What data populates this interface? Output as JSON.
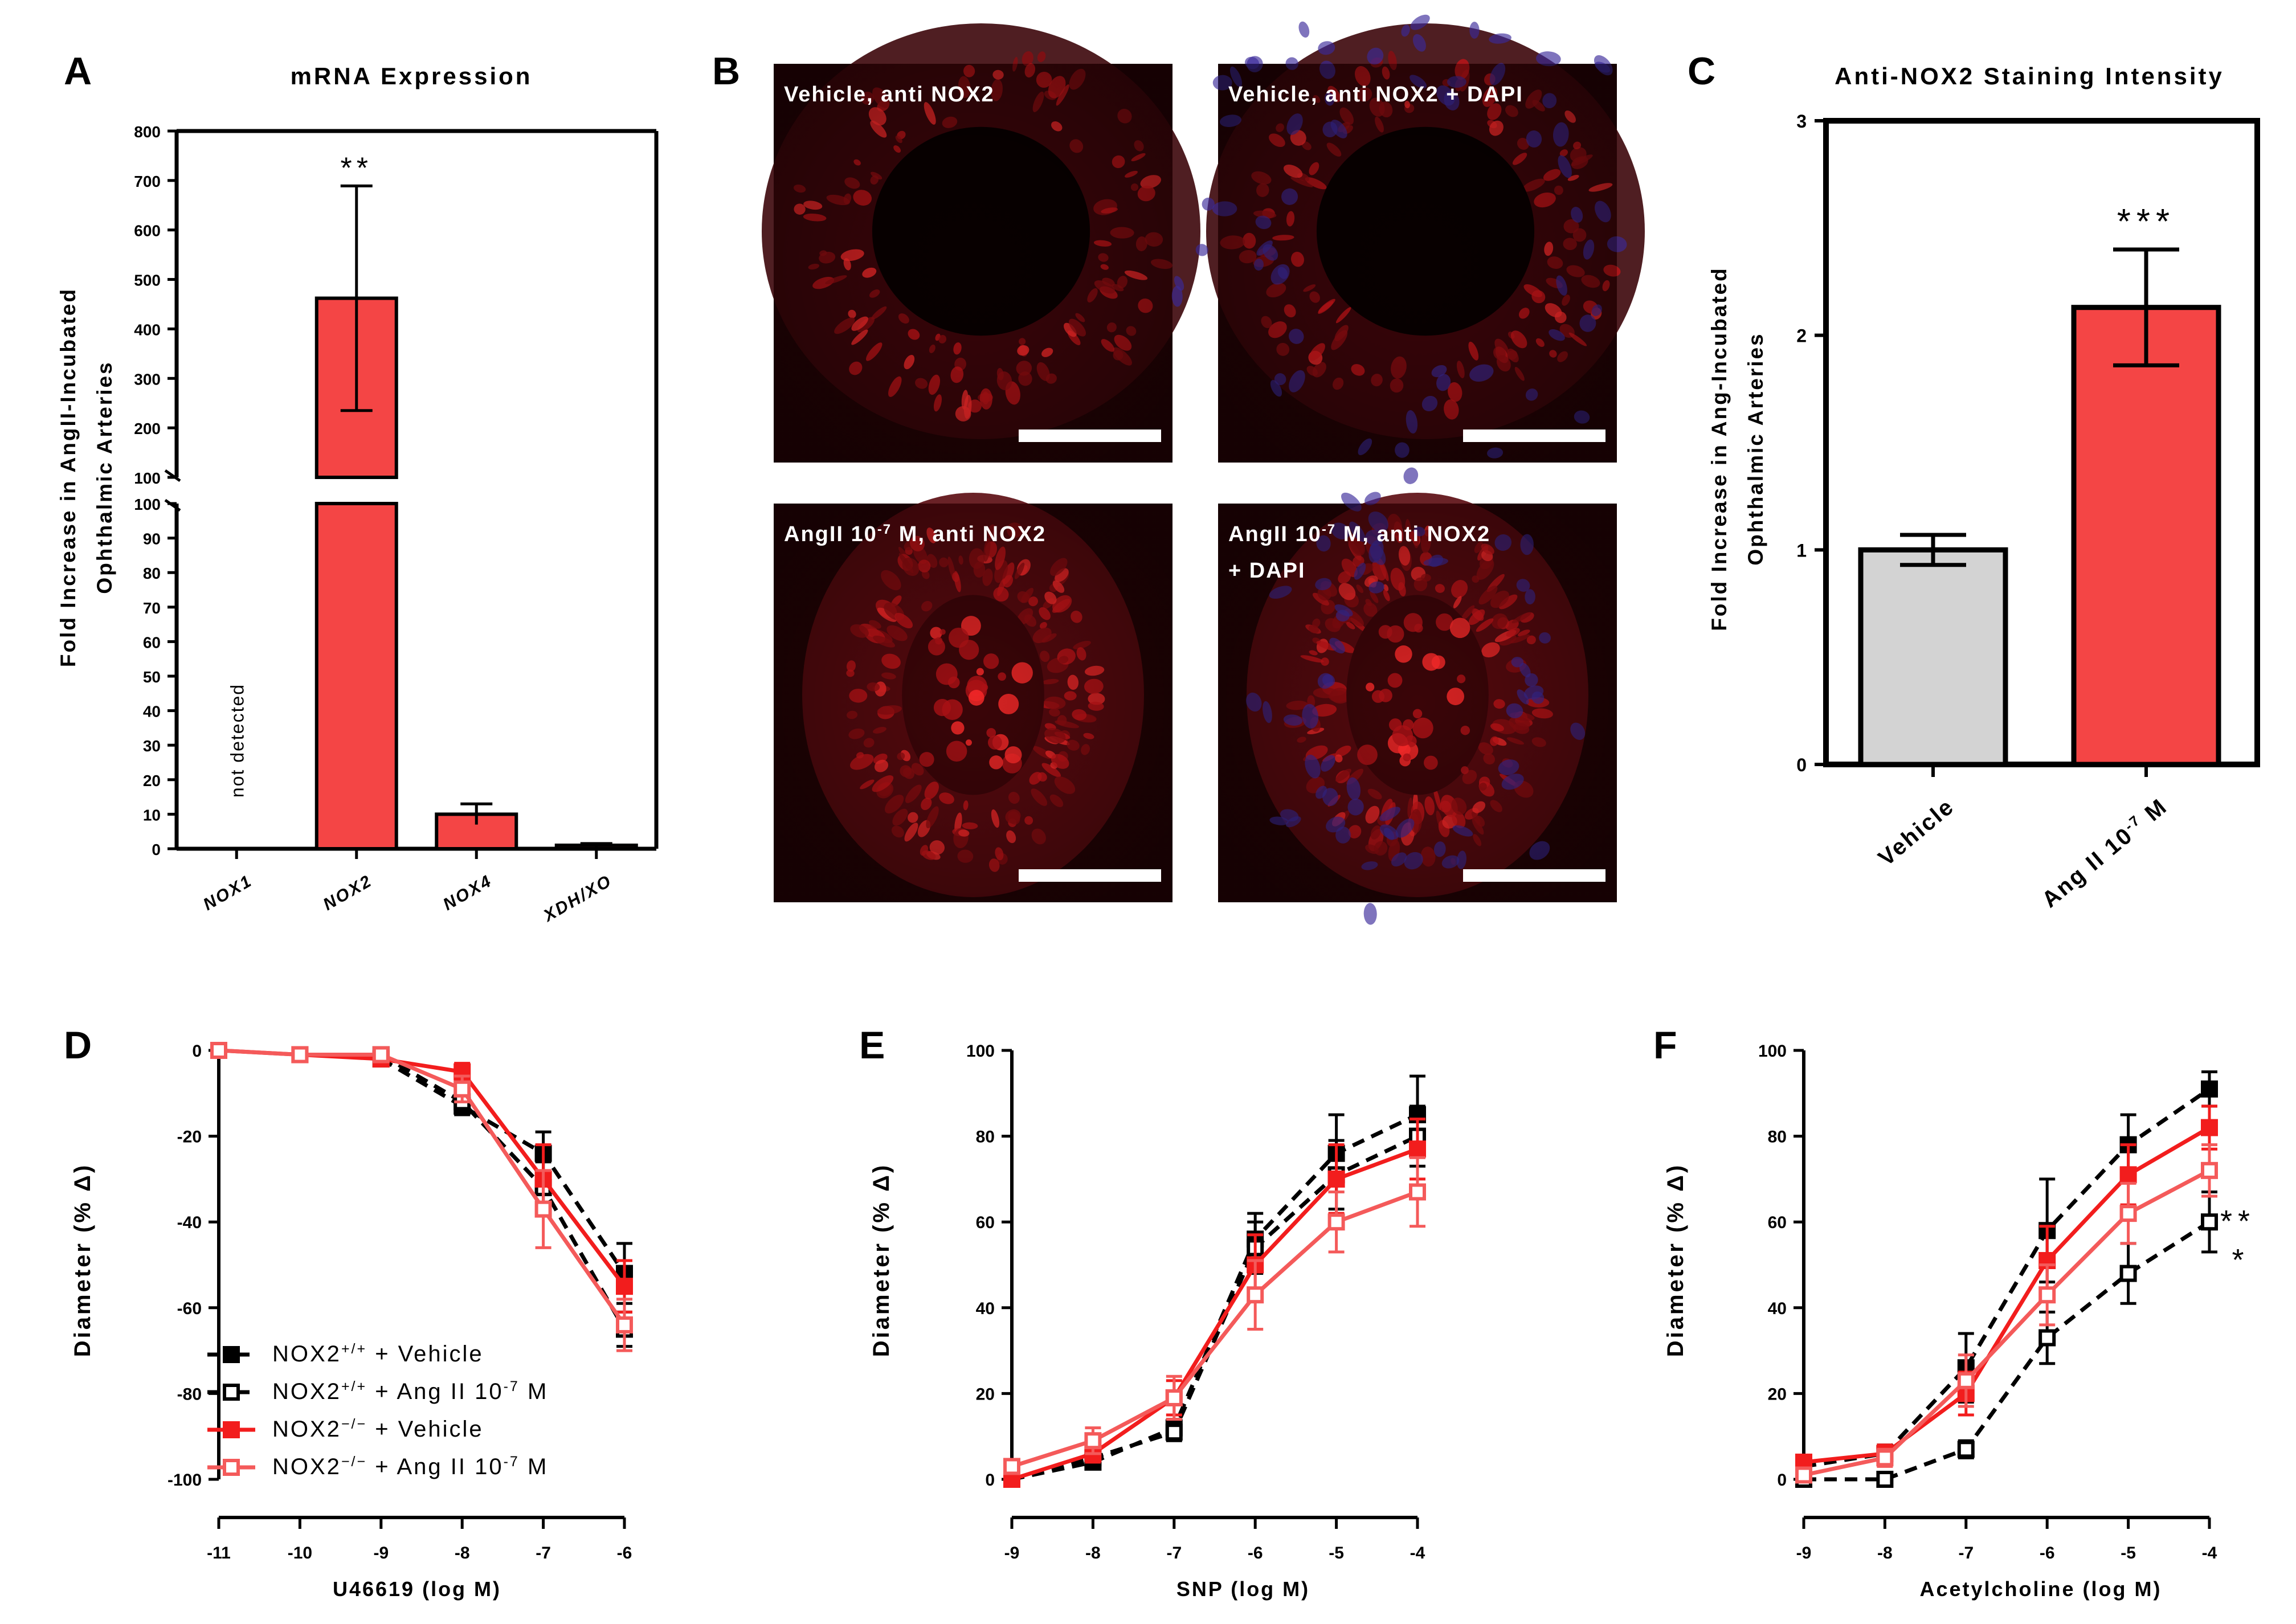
{
  "panels": {
    "A": {
      "letter": "A",
      "chart_data": {
        "type": "bar",
        "title": "mRNA Expression",
        "ylabel_line1": "Fold Increase in AngII-Incubated",
        "ylabel_line2": "Ophthalmic Arteries",
        "categories": [
          "NOX1",
          "NOX2",
          "NOX4",
          "XDH/XO"
        ],
        "values": [
          null,
          462,
          10,
          1
        ],
        "errors": [
          null,
          227,
          3,
          0.5
        ],
        "colors": [
          "#F44545",
          "#F44545",
          "#F44545",
          "#F44545"
        ],
        "not_detected_label": "not detected",
        "annotations": [
          {
            "category": "NOX2",
            "text": "**"
          }
        ],
        "axis_break": {
          "lower": [
            0,
            100
          ],
          "upper": [
            100,
            800
          ]
        },
        "lower_ticks": [
          "0",
          "10",
          "20",
          "30",
          "40",
          "50",
          "60",
          "70",
          "80",
          "90",
          "100"
        ],
        "upper_ticks": [
          "100",
          "200",
          "300",
          "400",
          "500",
          "600",
          "700",
          "800"
        ]
      }
    },
    "B": {
      "letter": "B",
      "images": [
        {
          "label": "Vehicle, anti NOX2",
          "condition": "vehicle",
          "dapi": false
        },
        {
          "label": "Vehicle, anti NOX2 + DAPI",
          "condition": "vehicle",
          "dapi": true
        },
        {
          "label_pre": "AngII 10",
          "label_sup": "-7",
          "label_post": " M, anti NOX2",
          "label_line2": "",
          "condition": "angii",
          "dapi": false
        },
        {
          "label_pre": "AngII 10",
          "label_sup": "-7",
          "label_post": " M, anti NOX2",
          "label_line2": "+ DAPI",
          "condition": "angii",
          "dapi": true
        }
      ]
    },
    "C": {
      "letter": "C",
      "chart_data": {
        "type": "bar",
        "title": "Anti-NOX2 Staining Intensity",
        "ylabel_line1": "Fold Increase in Ang-Incubated",
        "ylabel_line2": "Ophthalmic Arteries",
        "categories": [
          "Vehicle",
          "Ang II 10-7 M"
        ],
        "category_labels": [
          {
            "pre": "Vehicle",
            "sup": "",
            "post": ""
          },
          {
            "pre": "Ang II 10",
            "sup": "-7",
            "post": " M"
          }
        ],
        "values": [
          1.0,
          2.13
        ],
        "errors": [
          0.07,
          0.27
        ],
        "colors": [
          "#D3D3D3",
          "#F44545"
        ],
        "annotations": [
          {
            "category": "Ang II 10-7 M",
            "text": "***"
          }
        ],
        "ylim": [
          0,
          3
        ],
        "yticks": [
          "0",
          "1",
          "2",
          "3"
        ]
      }
    },
    "D": {
      "letter": "D",
      "chart_data": {
        "type": "line",
        "xlabel": "U46619 (log M)",
        "ylabel": "Diameter (% Δ)",
        "x": [
          -11,
          -10,
          -9,
          -8,
          -7,
          -6
        ],
        "xticks": [
          "-11",
          "-10",
          "-9",
          "-8",
          "-7",
          "-6"
        ],
        "ylim": [
          -100,
          0
        ],
        "yticks": [
          "0",
          "-20",
          "-40",
          "-60",
          "-80",
          "-100"
        ],
        "series": [
          {
            "name": "NOX2+/+ + Vehicle",
            "color": "#000000",
            "marker": "filled",
            "dashed": true,
            "values": [
              null,
              null,
              -2,
              -13,
              -24,
              -52
            ],
            "errors": [
              null,
              null,
              1,
              2,
              5,
              7
            ]
          },
          {
            "name": "NOX2+/+ + Ang II 10-7 M",
            "color": "#000000",
            "marker": "open",
            "dashed": true,
            "values": [
              null,
              null,
              -1,
              -12,
              -32,
              -65
            ],
            "errors": [
              null,
              null,
              1,
              2,
              6,
              4
            ]
          },
          {
            "name": "NOX2-/- + Vehicle",
            "color": "#F21D1D",
            "marker": "filled",
            "dashed": false,
            "values": [
              0,
              -1,
              -2,
              -5,
              -30,
              -55
            ],
            "errors": [
              0,
              1,
              1,
              2,
              8,
              6
            ]
          },
          {
            "name": "NOX2-/- + Ang II 10-7 M",
            "color": "#F45A5A",
            "marker": "open",
            "dashed": false,
            "values": [
              0,
              -1,
              -1,
              -9,
              -37,
              -64
            ],
            "errors": [
              0,
              1,
              1,
              3,
              9,
              6
            ]
          }
        ],
        "legend": [
          {
            "pre": "NOX2",
            "sup": "+/+",
            "post": " + Vehicle"
          },
          {
            "pre": "NOX2",
            "sup": "+/+",
            "post": " + Ang II 10",
            "sup2": "-7",
            "post2": " M"
          },
          {
            "pre": "NOX2",
            "sup": "−/−",
            "post": " + Vehicle"
          },
          {
            "pre": "NOX2",
            "sup": "−/−",
            "post": " + Ang II 10",
            "sup2": "-7",
            "post2": " M"
          }
        ]
      }
    },
    "E": {
      "letter": "E",
      "chart_data": {
        "type": "line",
        "xlabel": "SNP (log M)",
        "ylabel": "Diameter (% Δ)",
        "x": [
          -9,
          -8,
          -7,
          -6,
          -5,
          -4
        ],
        "xticks": [
          "-9",
          "-8",
          "-7",
          "-6",
          "-5",
          "-4"
        ],
        "ylim": [
          0,
          100
        ],
        "yticks": [
          "0",
          "20",
          "40",
          "60",
          "80",
          "100"
        ],
        "series": [
          {
            "name": "NOX2+/+ + Vehicle",
            "color": "#000000",
            "marker": "filled",
            "dashed": true,
            "values": [
              0,
              4,
              12,
              56,
              76,
              85
            ],
            "errors": [
              0,
              1,
              2,
              6,
              9,
              9
            ]
          },
          {
            "name": "NOX2+/+ + Ang II 10-7 M",
            "color": "#000000",
            "marker": "open",
            "dashed": true,
            "values": [
              0,
              5,
              11,
              54,
              71,
              80
            ],
            "errors": [
              0,
              1,
              2,
              6,
              8,
              7
            ]
          },
          {
            "name": "NOX2-/- + Vehicle",
            "color": "#F21D1D",
            "marker": "filled",
            "dashed": false,
            "values": [
              0,
              6,
              19,
              50,
              70,
              77
            ],
            "errors": [
              0,
              2,
              4,
              7,
              8,
              7
            ]
          },
          {
            "name": "NOX2-/- + Ang II 10-7 M",
            "color": "#F45A5A",
            "marker": "open",
            "dashed": false,
            "values": [
              3,
              9,
              19,
              43,
              60,
              67
            ],
            "errors": [
              1,
              3,
              5,
              8,
              7,
              8
            ]
          }
        ]
      }
    },
    "F": {
      "letter": "F",
      "chart_data": {
        "type": "line",
        "xlabel": "Acetylcholine (log M)",
        "ylabel": "Diameter (% Δ)",
        "x": [
          -9,
          -8,
          -7,
          -6,
          -5,
          -4
        ],
        "xticks": [
          "-9",
          "-8",
          "-7",
          "-6",
          "-5",
          "-4"
        ],
        "ylim": [
          0,
          100
        ],
        "yticks": [
          "0",
          "20",
          "40",
          "60",
          "80",
          "100"
        ],
        "series": [
          {
            "name": "NOX2+/+ + Vehicle",
            "color": "#000000",
            "marker": "filled",
            "dashed": true,
            "values": [
              3,
              6,
              26,
              58,
              78,
              91
            ],
            "errors": [
              1,
              2,
              8,
              12,
              7,
              4
            ]
          },
          {
            "name": "NOX2+/+ + Ang II 10-7 M",
            "color": "#000000",
            "marker": "open",
            "dashed": true,
            "values": [
              0,
              0,
              7,
              33,
              48,
              60
            ],
            "errors": [
              0,
              0,
              2,
              6,
              7,
              7
            ]
          },
          {
            "name": "NOX2-/- + Vehicle",
            "color": "#F21D1D",
            "marker": "filled",
            "dashed": false,
            "values": [
              4,
              6,
              20,
              51,
              71,
              82
            ],
            "errors": [
              1,
              2,
              5,
              8,
              7,
              5
            ]
          },
          {
            "name": "NOX2-/- + Ang II 10-7 M",
            "color": "#F45A5A",
            "marker": "open",
            "dashed": false,
            "values": [
              1,
              5,
              23,
              43,
              62,
              72
            ],
            "errors": [
              1,
              2,
              6,
              7,
              7,
              6
            ]
          }
        ],
        "annotations": [
          "**",
          "*"
        ]
      }
    }
  }
}
